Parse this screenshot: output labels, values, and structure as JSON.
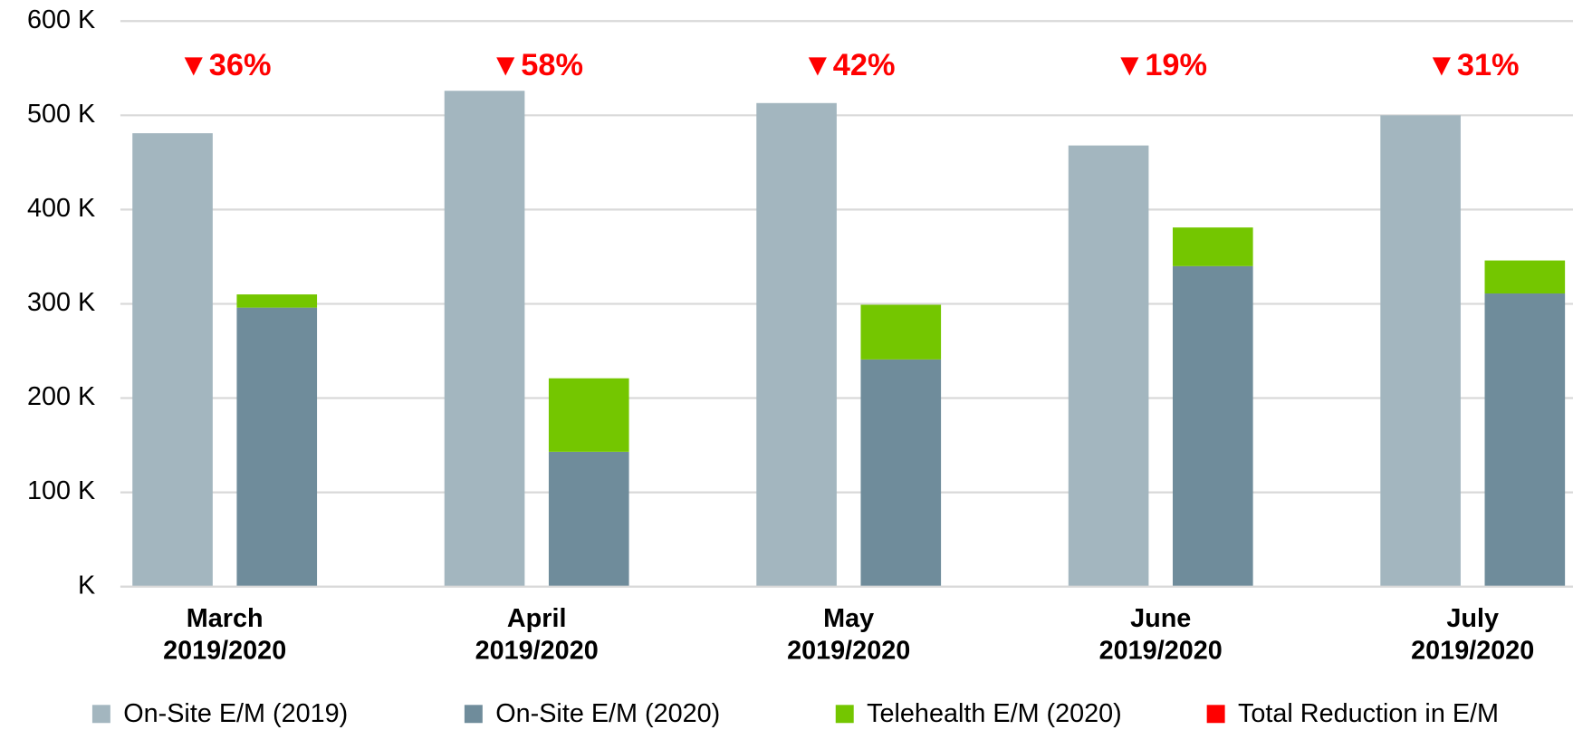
{
  "chart_data": {
    "type": "bar",
    "stacked_series": [
      "On-Site E/M (2020)",
      "Telehealth E/M (2020)"
    ],
    "categories": [
      "March\n2019/2020",
      "April\n2019/2020",
      "May\n2019/2020",
      "June\n2019/2020",
      "July\n2019/2020"
    ],
    "series": [
      {
        "name": "On-Site E/M (2019)",
        "color": "#a3b6bf",
        "values": [
          481,
          526,
          513,
          468,
          500
        ]
      },
      {
        "name": "On-Site E/M (2020)",
        "color": "#6f8c9b",
        "values": [
          296,
          143,
          241,
          340,
          311
        ]
      },
      {
        "name": "Telehealth E/M (2020)",
        "color": "#74c600",
        "values": [
          14,
          78,
          58,
          41,
          35
        ]
      },
      {
        "name": "Total Reduction in E/M",
        "color": "#ff0000",
        "values": [
          36,
          58,
          42,
          19,
          31
        ],
        "value_labels": [
          "▼36%",
          "▼58%",
          "▼42%",
          "▼19%",
          "▼31%"
        ]
      }
    ],
    "ylim": [
      0,
      600
    ],
    "yticks": [
      {
        "value": 0,
        "label": "K"
      },
      {
        "value": 100,
        "label": "100 K"
      },
      {
        "value": 200,
        "label": "200 K"
      },
      {
        "value": 300,
        "label": "300 K"
      },
      {
        "value": 400,
        "label": "400 K"
      },
      {
        "value": 500,
        "label": "500 K"
      },
      {
        "value": 600,
        "label": "600 K"
      }
    ],
    "grid": true,
    "legend": "bottom"
  }
}
